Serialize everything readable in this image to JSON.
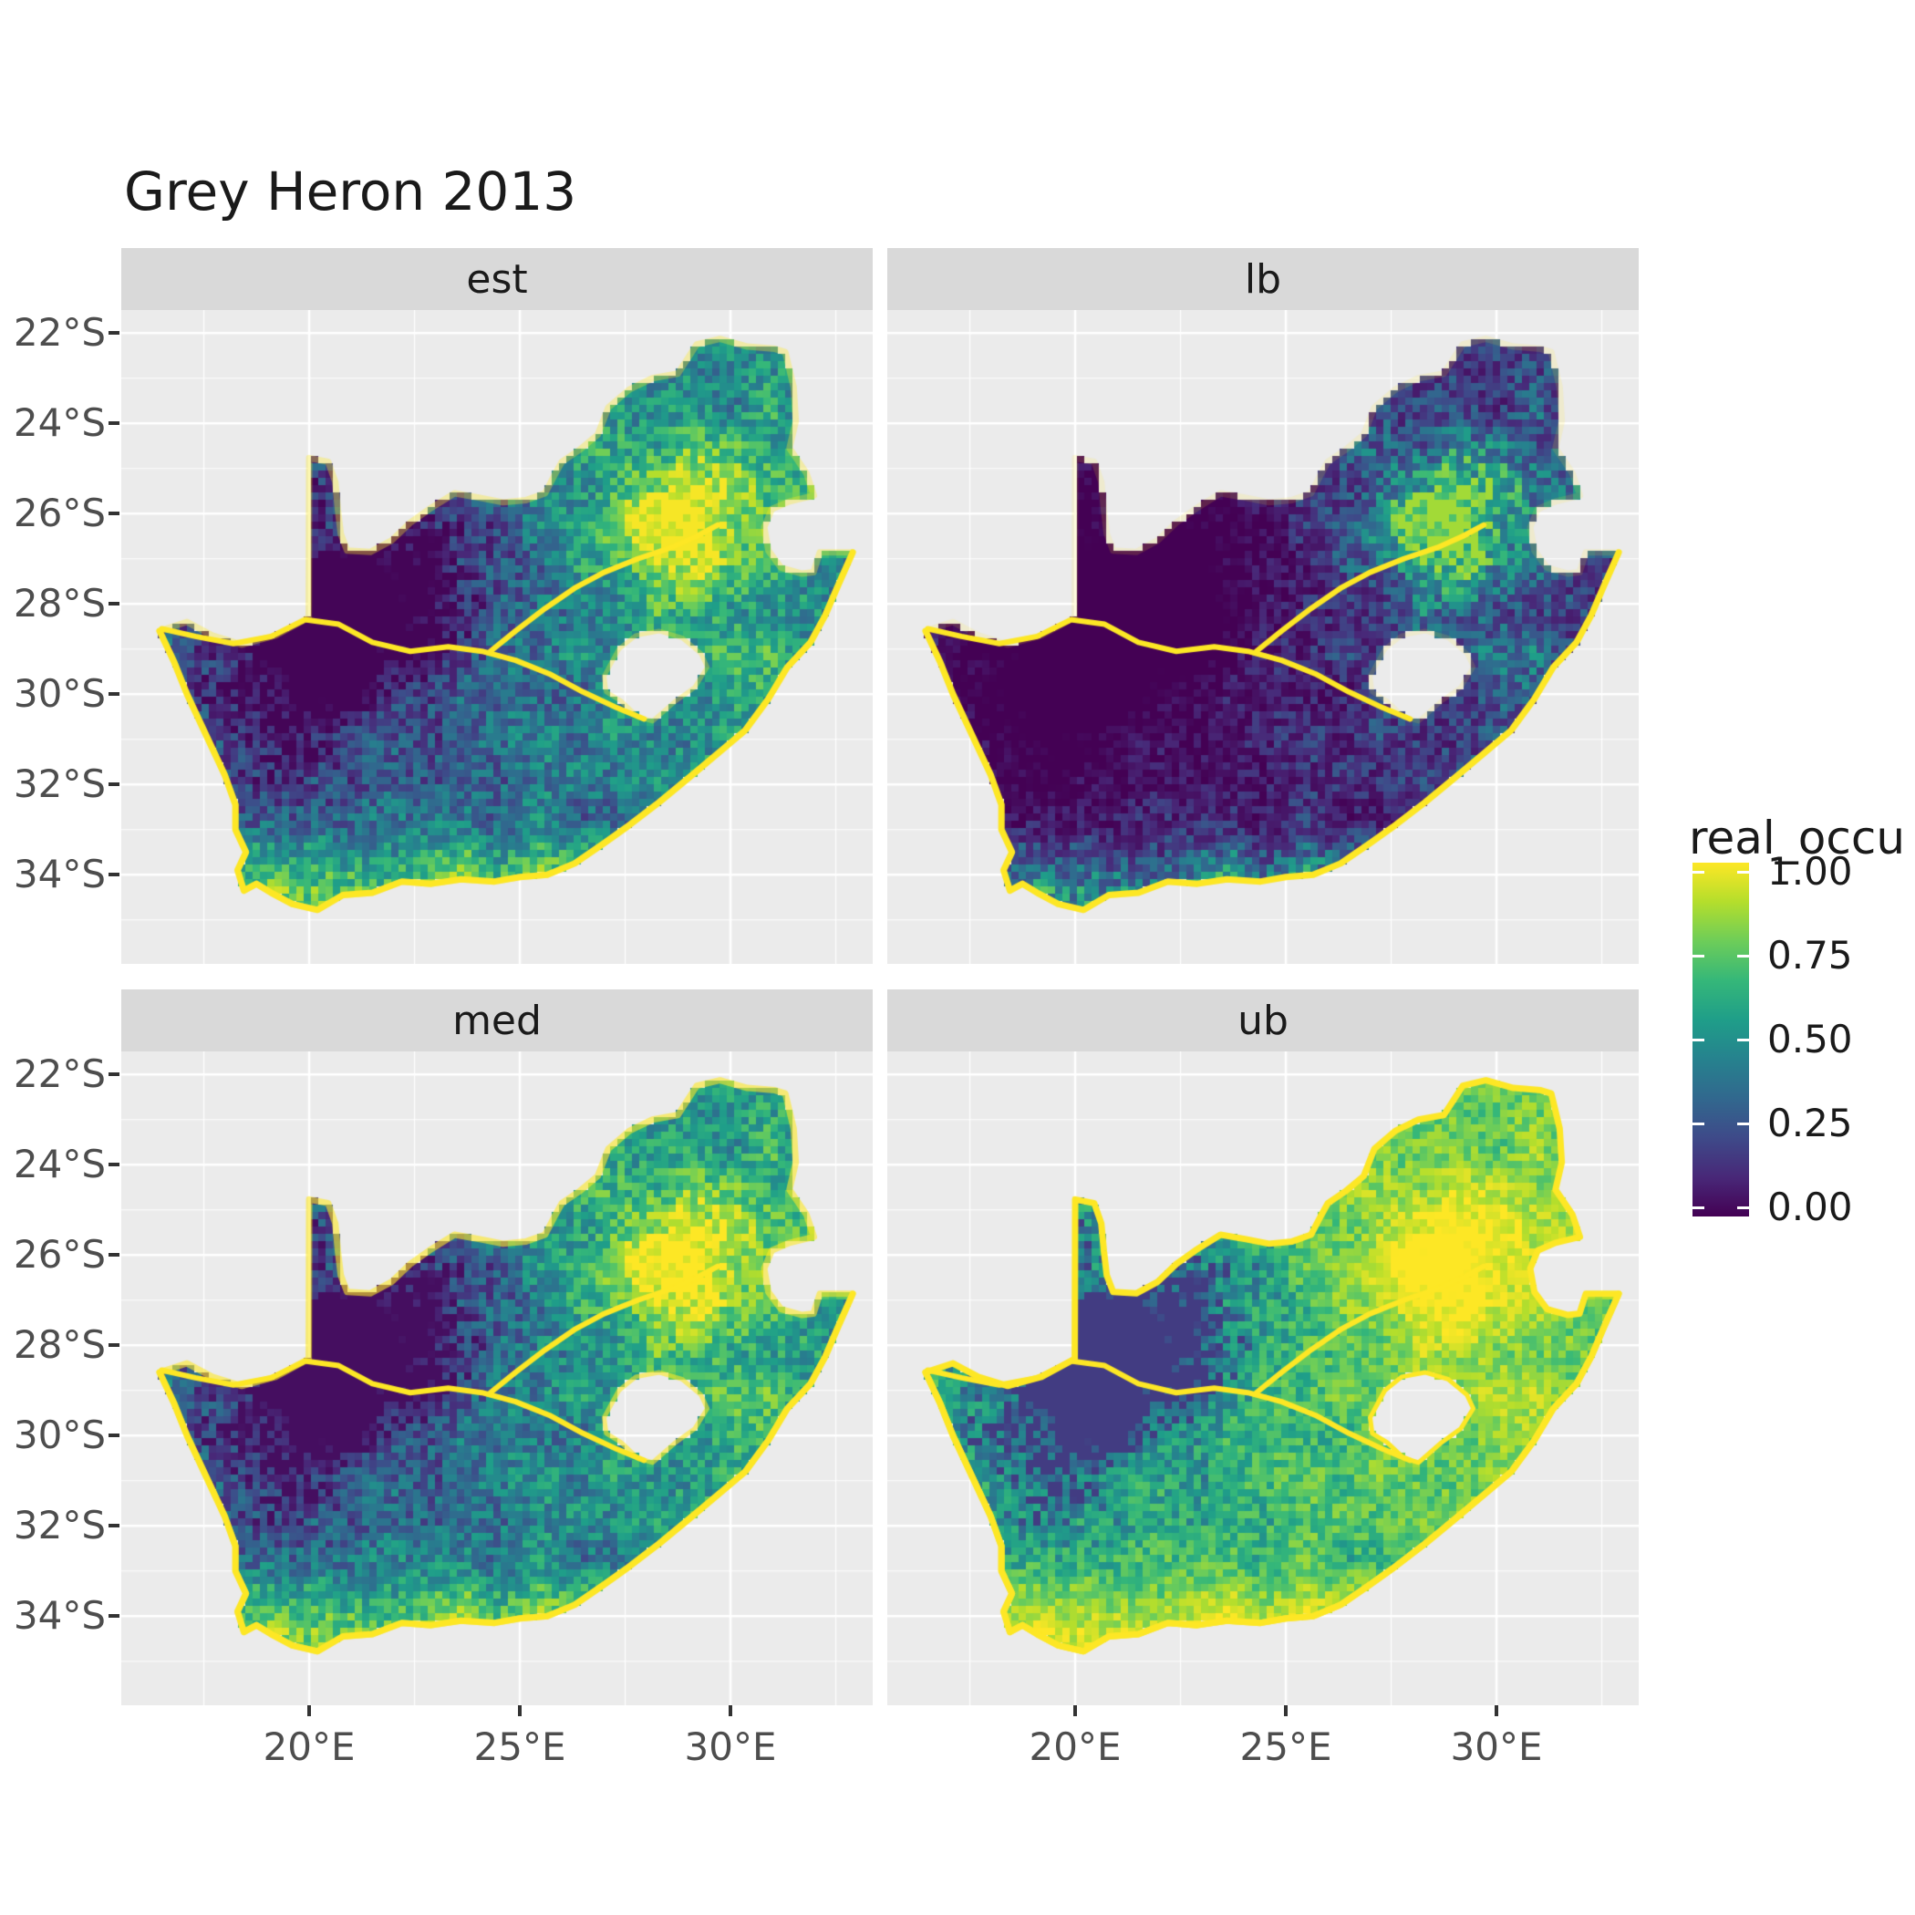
{
  "title": "Grey Heron 2013",
  "legend": {
    "title": "real_occu",
    "ticks": [
      {
        "label": "1.00",
        "value": 1.0
      },
      {
        "label": "0.75",
        "value": 0.75
      },
      {
        "label": "0.50",
        "value": 0.5
      },
      {
        "label": "0.25",
        "value": 0.25
      },
      {
        "label": "0.00",
        "value": 0.0
      }
    ]
  },
  "colors": {
    "panel_bg": "#ebebeb",
    "strip_bg": "#d9d9d9",
    "grid": "#ffffff",
    "axis_text": "#4d4d4d",
    "tick_mark": "#333333",
    "strip_text": "#1a1a1a",
    "title_text": "#1a1a1a",
    "river": "#fde725",
    "outline": "#fde725"
  },
  "chart_data": {
    "type": "heatmap",
    "title": "Grey Heron 2013",
    "variable": "real_occu",
    "region": "South Africa",
    "colormap": {
      "name": "viridis",
      "stops": [
        "#440154",
        "#482878",
        "#3e4a89",
        "#31688e",
        "#26828e",
        "#1f9e89",
        "#35b779",
        "#6dcd59",
        "#b4de2c",
        "#fde725"
      ]
    },
    "legend": {
      "title": "real_occu",
      "range": [
        0,
        1
      ],
      "tick_values": [
        1.0,
        0.75,
        0.5,
        0.25,
        0.0
      ]
    },
    "facets": [
      {
        "label": "est",
        "pow": 1.0,
        "mul": 1.0,
        "add": 0.0,
        "border_alpha": 0.35
      },
      {
        "label": "lb",
        "pow": 2.1,
        "mul": 0.9,
        "add": -0.02,
        "border_alpha": 0.15
      },
      {
        "label": "med",
        "pow": 0.88,
        "mul": 1.0,
        "add": 0.02,
        "border_alpha": 0.6
      },
      {
        "label": "ub",
        "pow": 0.45,
        "mul": 1.0,
        "add": 0.05,
        "border_alpha": 1.0
      }
    ],
    "x_axis": {
      "ticks": [
        "20°E",
        "25°E",
        "30°E"
      ],
      "tick_lons": [
        20,
        25,
        30
      ],
      "minor_lons": [
        17.5,
        22.5,
        27.5,
        32.5
      ],
      "lon_range": [
        15.54,
        33.38
      ]
    },
    "y_axis": {
      "ticks": [
        "22°S",
        "24°S",
        "26°S",
        "28°S",
        "30°S",
        "32°S",
        "34°S"
      ],
      "tick_lats": [
        -22,
        -24,
        -26,
        -28,
        -30,
        -32,
        -34
      ],
      "minor_lats": [
        -23,
        -25,
        -27,
        -29,
        -31,
        -33,
        -35
      ],
      "lat_range": [
        -35.98,
        -21.49
      ]
    },
    "map": {
      "outline": [
        [
          20.0,
          -24.77
        ],
        [
          20.45,
          -24.85
        ],
        [
          20.62,
          -25.3
        ],
        [
          20.68,
          -25.9
        ],
        [
          20.75,
          -26.45
        ],
        [
          20.9,
          -26.82
        ],
        [
          21.45,
          -26.85
        ],
        [
          21.95,
          -26.6
        ],
        [
          22.4,
          -26.2
        ],
        [
          22.85,
          -25.9
        ],
        [
          23.45,
          -25.55
        ],
        [
          24.05,
          -25.65
        ],
        [
          24.6,
          -25.75
        ],
        [
          25.15,
          -25.7
        ],
        [
          25.6,
          -25.55
        ],
        [
          25.85,
          -25.1
        ],
        [
          26.0,
          -24.85
        ],
        [
          26.4,
          -24.6
        ],
        [
          26.85,
          -24.25
        ],
        [
          27.1,
          -23.65
        ],
        [
          27.6,
          -23.25
        ],
        [
          28.15,
          -23.0
        ],
        [
          28.75,
          -22.9
        ],
        [
          29.2,
          -22.25
        ],
        [
          29.75,
          -22.13
        ],
        [
          30.4,
          -22.3
        ],
        [
          31.05,
          -22.35
        ],
        [
          31.3,
          -22.42
        ],
        [
          31.5,
          -23.2
        ],
        [
          31.55,
          -23.95
        ],
        [
          31.4,
          -24.55
        ],
        [
          31.8,
          -25.1
        ],
        [
          31.98,
          -25.6
        ],
        [
          31.4,
          -25.73
        ],
        [
          30.98,
          -25.9
        ],
        [
          30.8,
          -26.3
        ],
        [
          30.9,
          -26.82
        ],
        [
          31.2,
          -27.2
        ],
        [
          31.7,
          -27.33
        ],
        [
          31.97,
          -27.3
        ],
        [
          32.12,
          -26.86
        ],
        [
          32.9,
          -26.86
        ],
        [
          32.55,
          -27.6
        ],
        [
          32.25,
          -28.25
        ],
        [
          31.9,
          -28.85
        ],
        [
          31.35,
          -29.4
        ],
        [
          30.9,
          -30.1
        ],
        [
          30.35,
          -30.8
        ],
        [
          29.65,
          -31.35
        ],
        [
          28.95,
          -31.9
        ],
        [
          28.3,
          -32.4
        ],
        [
          27.6,
          -32.9
        ],
        [
          27.0,
          -33.3
        ],
        [
          26.3,
          -33.75
        ],
        [
          25.65,
          -34.0
        ],
        [
          25.0,
          -34.05
        ],
        [
          24.4,
          -34.15
        ],
        [
          23.6,
          -34.1
        ],
        [
          22.9,
          -34.2
        ],
        [
          22.2,
          -34.15
        ],
        [
          21.5,
          -34.4
        ],
        [
          20.8,
          -34.45
        ],
        [
          20.2,
          -34.78
        ],
        [
          19.6,
          -34.65
        ],
        [
          19.1,
          -34.4
        ],
        [
          18.75,
          -34.2
        ],
        [
          18.45,
          -34.35
        ],
        [
          18.3,
          -33.9
        ],
        [
          18.5,
          -33.5
        ],
        [
          18.25,
          -33.0
        ],
        [
          18.25,
          -32.45
        ],
        [
          18.0,
          -31.8
        ],
        [
          17.6,
          -31.0
        ],
        [
          17.1,
          -30.0
        ],
        [
          16.8,
          -29.3
        ],
        [
          16.45,
          -28.6
        ],
        [
          17.1,
          -28.4
        ],
        [
          17.7,
          -28.7
        ],
        [
          18.4,
          -28.9
        ],
        [
          19.2,
          -28.7
        ],
        [
          19.99,
          -28.3
        ]
      ],
      "coastline": [
        [
          32.9,
          -26.86
        ],
        [
          32.55,
          -27.6
        ],
        [
          32.25,
          -28.25
        ],
        [
          31.9,
          -28.85
        ],
        [
          31.35,
          -29.4
        ],
        [
          30.9,
          -30.1
        ],
        [
          30.35,
          -30.8
        ],
        [
          29.65,
          -31.35
        ],
        [
          28.95,
          -31.9
        ],
        [
          28.3,
          -32.4
        ],
        [
          27.6,
          -32.9
        ],
        [
          27.0,
          -33.3
        ],
        [
          26.3,
          -33.75
        ],
        [
          25.65,
          -34.0
        ],
        [
          25.0,
          -34.05
        ],
        [
          24.4,
          -34.15
        ],
        [
          23.6,
          -34.1
        ],
        [
          22.9,
          -34.2
        ],
        [
          22.2,
          -34.15
        ],
        [
          21.5,
          -34.4
        ],
        [
          20.8,
          -34.45
        ],
        [
          20.2,
          -34.78
        ],
        [
          19.6,
          -34.65
        ],
        [
          19.1,
          -34.4
        ],
        [
          18.75,
          -34.2
        ],
        [
          18.45,
          -34.35
        ],
        [
          18.3,
          -33.9
        ],
        [
          18.5,
          -33.5
        ],
        [
          18.25,
          -33.0
        ],
        [
          18.25,
          -32.45
        ],
        [
          18.0,
          -31.8
        ],
        [
          17.6,
          -31.0
        ],
        [
          17.1,
          -30.0
        ],
        [
          16.8,
          -29.3
        ],
        [
          16.45,
          -28.6
        ]
      ],
      "lesotho_hole": [
        [
          27.0,
          -29.6
        ],
        [
          27.35,
          -29.0
        ],
        [
          27.75,
          -28.7
        ],
        [
          28.3,
          -28.6
        ],
        [
          28.85,
          -28.75
        ],
        [
          29.3,
          -29.1
        ],
        [
          29.45,
          -29.4
        ],
        [
          29.15,
          -29.85
        ],
        [
          28.7,
          -30.15
        ],
        [
          28.15,
          -30.6
        ],
        [
          27.8,
          -30.5
        ],
        [
          27.4,
          -30.15
        ],
        [
          27.05,
          -29.95
        ]
      ],
      "rivers": [
        [
          [
            16.5,
            -28.55
          ],
          [
            17.3,
            -28.72
          ],
          [
            18.2,
            -28.88
          ],
          [
            19.1,
            -28.72
          ],
          [
            19.9,
            -28.35
          ],
          [
            20.7,
            -28.45
          ],
          [
            21.5,
            -28.85
          ],
          [
            22.4,
            -29.05
          ],
          [
            23.3,
            -28.95
          ],
          [
            24.1,
            -29.05
          ],
          [
            24.9,
            -29.25
          ],
          [
            25.7,
            -29.55
          ],
          [
            26.5,
            -29.95
          ],
          [
            27.3,
            -30.3
          ],
          [
            27.95,
            -30.55
          ]
        ],
        [
          [
            24.3,
            -29.05
          ],
          [
            24.9,
            -28.6
          ],
          [
            25.6,
            -28.1
          ],
          [
            26.3,
            -27.65
          ],
          [
            27.0,
            -27.3
          ],
          [
            27.8,
            -27.0
          ],
          [
            28.6,
            -26.75
          ],
          [
            29.2,
            -26.5
          ],
          [
            29.7,
            -26.25
          ]
        ]
      ]
    }
  }
}
